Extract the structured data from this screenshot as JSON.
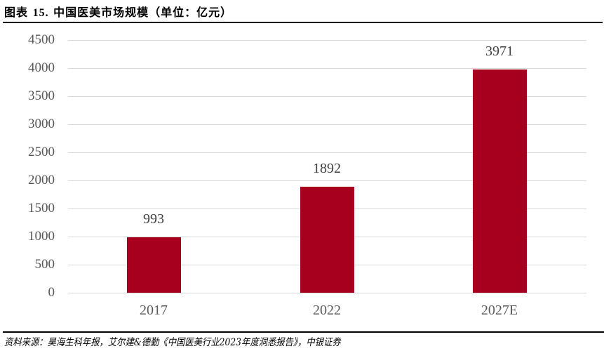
{
  "header": {
    "figure_label": "图表",
    "figure_number": "15.",
    "title_text": "中国医美市场规模（单位：亿元）"
  },
  "footer": {
    "source": "资料来源：昊海生科年报，艾尔建&德勤《中国医美行业2023年度洞悉报告》，中银证券"
  },
  "colors": {
    "bar": "#A6001E",
    "grid": "#D9D9D9",
    "axis_text": "#595959"
  },
  "chart_data": {
    "type": "bar",
    "title": "中国医美市场规模（单位：亿元）",
    "xlabel": "",
    "ylabel": "",
    "unit": "亿元",
    "categories": [
      "2017",
      "2022",
      "2027E"
    ],
    "values": [
      993,
      1892,
      3971
    ],
    "data_labels": [
      "993",
      "1892",
      "3971"
    ],
    "ylim": [
      0,
      4500
    ],
    "yticks": [
      0,
      500,
      1000,
      1500,
      2000,
      2500,
      3000,
      3500,
      4000,
      4500
    ],
    "ytick_labels": [
      "0",
      "500",
      "1000",
      "1500",
      "2000",
      "2500",
      "3000",
      "3500",
      "4000",
      "4500"
    ],
    "grid": true,
    "legend": "none",
    "source": "资料来源：昊海生科年报，艾尔建&德勤《中国医美行业2023年度洞悉报告》，中银证券"
  }
}
